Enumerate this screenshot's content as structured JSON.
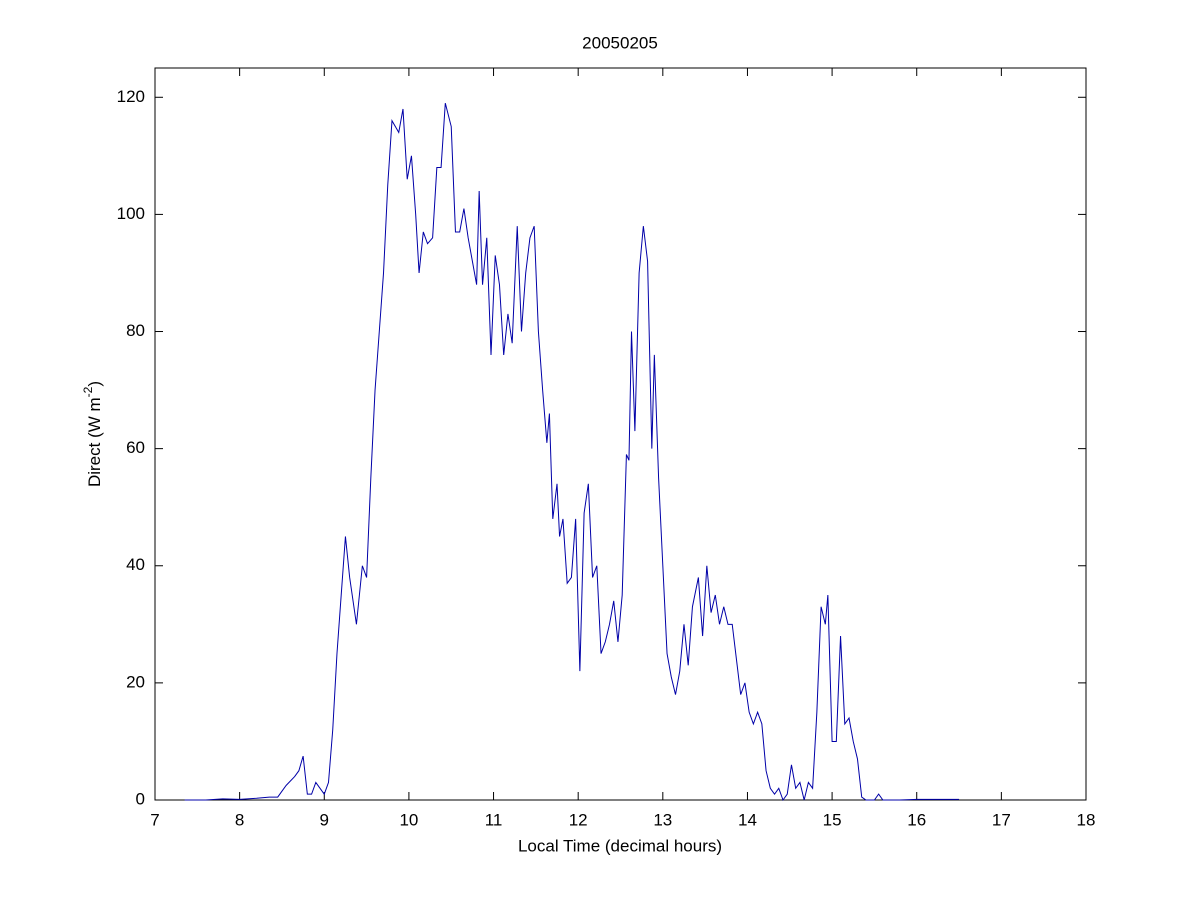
{
  "chart_data": {
    "type": "line",
    "title": "20050205",
    "xlabel": "Local Time (decimal hours)",
    "ylabel": [
      "Direct (W m",
      "-2",
      ")"
    ],
    "xlim": [
      7,
      18
    ],
    "xticks": [
      7,
      8,
      9,
      10,
      11,
      12,
      13,
      14,
      15,
      16,
      17,
      18
    ],
    "ylim": [
      0,
      125
    ],
    "yticks": [
      0,
      20,
      40,
      60,
      80,
      100,
      120
    ],
    "grid": false,
    "series": [
      {
        "color": "#0000a8",
        "x": [
          7.35,
          7.6,
          7.8,
          8.0,
          8.2,
          8.35,
          8.45,
          8.5,
          8.55,
          8.65,
          8.7,
          8.75,
          8.8,
          8.85,
          8.9,
          8.95,
          9.0,
          9.05,
          9.1,
          9.15,
          9.2,
          9.25,
          9.3,
          9.38,
          9.45,
          9.5,
          9.55,
          9.6,
          9.65,
          9.7,
          9.75,
          9.8,
          9.88,
          9.93,
          9.98,
          10.03,
          10.08,
          10.12,
          10.17,
          10.22,
          10.28,
          10.33,
          10.38,
          10.43,
          10.5,
          10.55,
          10.6,
          10.65,
          10.7,
          10.75,
          10.8,
          10.83,
          10.87,
          10.92,
          10.97,
          11.02,
          11.07,
          11.12,
          11.17,
          11.22,
          11.28,
          11.33,
          11.38,
          11.43,
          11.48,
          11.53,
          11.58,
          11.63,
          11.66,
          11.7,
          11.75,
          11.78,
          11.82,
          11.87,
          11.92,
          11.97,
          12.02,
          12.07,
          12.12,
          12.17,
          12.22,
          12.27,
          12.32,
          12.37,
          12.42,
          12.47,
          12.52,
          12.57,
          12.6,
          12.63,
          12.67,
          12.72,
          12.77,
          12.82,
          12.87,
          12.9,
          12.95,
          13.0,
          13.05,
          13.1,
          13.15,
          13.2,
          13.25,
          13.3,
          13.35,
          13.42,
          13.47,
          13.52,
          13.57,
          13.62,
          13.67,
          13.72,
          13.77,
          13.82,
          13.87,
          13.92,
          13.97,
          14.02,
          14.07,
          14.12,
          14.17,
          14.22,
          14.27,
          14.32,
          14.37,
          14.42,
          14.47,
          14.52,
          14.57,
          14.62,
          14.67,
          14.72,
          14.77,
          14.82,
          14.87,
          14.92,
          14.95,
          15.0,
          15.05,
          15.1,
          15.15,
          15.2,
          15.25,
          15.3,
          15.35,
          15.4,
          15.5,
          15.55,
          15.6,
          15.8,
          16.0,
          16.5
        ],
        "values": [
          0,
          0,
          0.2,
          0.1,
          0.3,
          0.5,
          0.5,
          1.5,
          2.5,
          4,
          5,
          7.5,
          1,
          1,
          3,
          2,
          1,
          3,
          12,
          25,
          35,
          45,
          38,
          30,
          40,
          38,
          55,
          70,
          80,
          90,
          105,
          116,
          114,
          118,
          106,
          110,
          100,
          90,
          97,
          95,
          96,
          108,
          108,
          119,
          115,
          97,
          97,
          101,
          96,
          92,
          88,
          104,
          88,
          96,
          76,
          93,
          88,
          76,
          83,
          78,
          98,
          80,
          90,
          96,
          98,
          80,
          70,
          61,
          66,
          48,
          54,
          45,
          48,
          37,
          38,
          48,
          22,
          49,
          54,
          38,
          40,
          25,
          27,
          30,
          34,
          27,
          35,
          59,
          58,
          80,
          63,
          90,
          98,
          92,
          60,
          76,
          55,
          40,
          25,
          21,
          18,
          22,
          30,
          23,
          33,
          38,
          28,
          40,
          32,
          35,
          30,
          33,
          30,
          30,
          24,
          18,
          20,
          15,
          13,
          15,
          13,
          5,
          2,
          1,
          2,
          0,
          1,
          6,
          2,
          3,
          0,
          3,
          2,
          15,
          33,
          30,
          35,
          10,
          10,
          28,
          13,
          14,
          10,
          7,
          0.5,
          0,
          0,
          1,
          0,
          0,
          0.1,
          0.1
        ]
      }
    ]
  }
}
